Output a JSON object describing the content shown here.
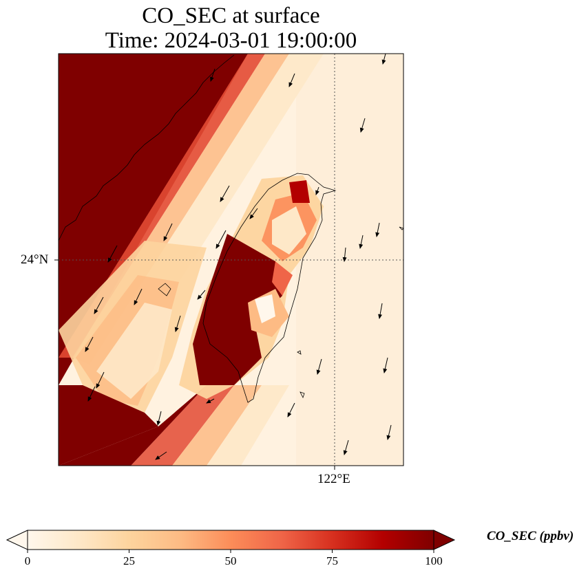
{
  "title_line1": "CO_SEC at surface",
  "title_line2": "Time: 2024-03-01 19:00:00",
  "axes": {
    "lat_label": "24°N",
    "lon_label": "122°E"
  },
  "colorbar": {
    "label": "CO_SEC (ppbv)",
    "min": 0,
    "max": 100,
    "ticks": [
      "0",
      "25",
      "50",
      "75",
      "100"
    ],
    "extend": "both",
    "colormap": "OrRd",
    "stops": [
      "#fff7ec",
      "#fee8c8",
      "#fdd49e",
      "#fdbb84",
      "#fc8d59",
      "#ef6548",
      "#d7301f",
      "#b30000",
      "#7f0000"
    ]
  },
  "map": {
    "gridlines": "dotted",
    "coastline": "Taiwan and Fujian coast",
    "vectors": "wind arrows pointing mostly south-southwest"
  }
}
